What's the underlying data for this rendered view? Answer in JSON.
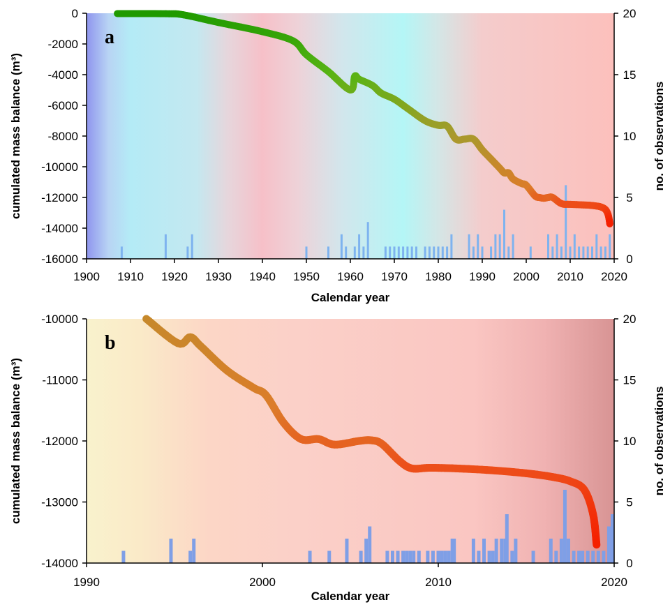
{
  "chart_data": [
    {
      "panel_label": "a",
      "type": "line",
      "xlabel": "Calendar year",
      "ylabel_left": "cumulated mass balance (m³)",
      "ylabel_right": "no. of observations",
      "xlim": [
        1900,
        2020
      ],
      "ylim_left": [
        -16000,
        0
      ],
      "ylim_right": [
        0,
        20
      ],
      "x_ticks": [
        "1900",
        "1910",
        "1920",
        "1930",
        "1940",
        "1950",
        "1960",
        "1970",
        "1980",
        "1990",
        "2000",
        "2010",
        "2020"
      ],
      "y_left_ticks": [
        "0",
        "-2000",
        "-4000",
        "-6000",
        "-8000",
        "-10000",
        "-12000",
        "-14000",
        "-16000"
      ],
      "y_right_ticks": [
        "20",
        "15",
        "10",
        "5",
        "0"
      ],
      "background_climate_bands": [
        {
          "x": 1900,
          "color": "#8f95ee"
        },
        {
          "x": 1905,
          "color": "#b8d4f4"
        },
        {
          "x": 1910,
          "color": "#b4ebf6"
        },
        {
          "x": 1925,
          "color": "#c4e8f0"
        },
        {
          "x": 1932,
          "color": "#e6d6dc"
        },
        {
          "x": 1940,
          "color": "#f6c0c8"
        },
        {
          "x": 1948,
          "color": "#eed2d8"
        },
        {
          "x": 1958,
          "color": "#d2e6ec"
        },
        {
          "x": 1972,
          "color": "#b4f6f6"
        },
        {
          "x": 1980,
          "color": "#d4e6e6"
        },
        {
          "x": 1990,
          "color": "#f4cccc"
        },
        {
          "x": 2020,
          "color": "#fcc0bc"
        }
      ],
      "series": [
        {
          "type": "line",
          "points": [
            [
              1907,
              -20
            ],
            [
              1918,
              -30
            ],
            [
              1922,
              -100
            ],
            [
              1930,
              -600
            ],
            [
              1940,
              -1200
            ],
            [
              1947,
              -1800
            ],
            [
              1950,
              -2700
            ],
            [
              1955,
              -3800
            ],
            [
              1960,
              -5000
            ],
            [
              1961,
              -4100
            ],
            [
              1962,
              -4300
            ],
            [
              1965,
              -4700
            ],
            [
              1967,
              -5200
            ],
            [
              1970,
              -5600
            ],
            [
              1973,
              -6200
            ],
            [
              1977,
              -7000
            ],
            [
              1980,
              -7300
            ],
            [
              1982,
              -7350
            ],
            [
              1984,
              -8200
            ],
            [
              1986,
              -8200
            ],
            [
              1988,
              -8200
            ],
            [
              1990,
              -8900
            ],
            [
              1992,
              -9500
            ],
            [
              1994,
              -10100
            ],
            [
              1995,
              -10400
            ],
            [
              1996,
              -10400
            ],
            [
              1997,
              -10800
            ],
            [
              1999,
              -11100
            ],
            [
              2000,
              -11200
            ],
            [
              2002,
              -11900
            ],
            [
              2003,
              -12000
            ],
            [
              2004,
              -12050
            ],
            [
              2005,
              -12000
            ],
            [
              2006,
              -12000
            ],
            [
              2008,
              -12400
            ],
            [
              2010,
              -12450
            ],
            [
              2014,
              -12500
            ],
            [
              2016,
              -12560
            ],
            [
              2017,
              -12620
            ],
            [
              2018,
              -12780
            ],
            [
              2018.6,
              -13100
            ],
            [
              2018.9,
              -13500
            ],
            [
              2019,
              -13720
            ]
          ]
        },
        {
          "type": "bar",
          "name": "no. of observations",
          "color": "#7eb3ef",
          "x": [
            1908,
            1918,
            1923,
            1924,
            1950,
            1955,
            1958,
            1959,
            1961,
            1962,
            1963,
            1964,
            1968,
            1969,
            1970,
            1971,
            1972,
            1973,
            1974,
            1975,
            1977,
            1978,
            1979,
            1980,
            1981,
            1982,
            1983,
            1987,
            1988,
            1989,
            1990,
            1992,
            1993,
            1994,
            1995,
            1996,
            1997,
            2001,
            2005,
            2006,
            2007,
            2008,
            2009,
            2010,
            2011,
            2012,
            2013,
            2014,
            2015,
            2016,
            2017,
            2018,
            2019
          ],
          "values": [
            1,
            2,
            1,
            2,
            1,
            1,
            2,
            1,
            1,
            2,
            1,
            3,
            1,
            1,
            1,
            1,
            1,
            1,
            1,
            1,
            1,
            1,
            1,
            1,
            1,
            1,
            2,
            2,
            1,
            2,
            1,
            1,
            2,
            2,
            4,
            1,
            2,
            1,
            2,
            1,
            2,
            1,
            6,
            1,
            2,
            1,
            1,
            1,
            1,
            2,
            1,
            1,
            2
          ]
        }
      ]
    },
    {
      "panel_label": "b",
      "type": "line",
      "xlabel": "Calendar year",
      "ylabel_left": "cumulated mass balance (m³)",
      "ylabel_right": "no. of observations",
      "xlim": [
        1990,
        2020
      ],
      "ylim_left": [
        -14000,
        -10000
      ],
      "ylim_right": [
        0,
        20
      ],
      "x_ticks": [
        "1990",
        "2000",
        "2010",
        "2020"
      ],
      "y_left_ticks": [
        "-10000",
        "-11000",
        "-12000",
        "-13000",
        "-14000"
      ],
      "y_right_ticks": [
        "20",
        "15",
        "10",
        "5",
        "0"
      ],
      "background_climate_bands": [
        {
          "x": 1990,
          "color": "#f9f2cd"
        },
        {
          "x": 1993,
          "color": "#faeac8"
        },
        {
          "x": 1997,
          "color": "#fcd6c6"
        },
        {
          "x": 2002,
          "color": "#fbd0c8"
        },
        {
          "x": 2012,
          "color": "#fac6c2"
        },
        {
          "x": 2016,
          "color": "#f0b2b2"
        },
        {
          "x": 2020,
          "color": "#d89494"
        }
      ],
      "series": [
        {
          "type": "line",
          "points": [
            [
              1993.4,
              -10000
            ],
            [
              1995.2,
              -10400
            ],
            [
              1995.9,
              -10300
            ],
            [
              1996.5,
              -10450
            ],
            [
              1998,
              -10850
            ],
            [
              1999.5,
              -11130
            ],
            [
              2000.2,
              -11250
            ],
            [
              2001.2,
              -11700
            ],
            [
              2002.2,
              -11970
            ],
            [
              2003.2,
              -11970
            ],
            [
              2004.1,
              -12060
            ],
            [
              2005.5,
              -12000
            ],
            [
              2006.2,
              -11990
            ],
            [
              2006.8,
              -12050
            ],
            [
              2007.8,
              -12330
            ],
            [
              2008.5,
              -12450
            ],
            [
              2009.5,
              -12440
            ],
            [
              2011,
              -12450
            ],
            [
              2013,
              -12480
            ],
            [
              2015,
              -12530
            ],
            [
              2016.5,
              -12590
            ],
            [
              2017.5,
              -12660
            ],
            [
              2018.3,
              -12800
            ],
            [
              2018.8,
              -13200
            ],
            [
              2019,
              -13700
            ]
          ]
        },
        {
          "type": "bar",
          "name": "no. of observations",
          "color": "#7f9fe6",
          "x": [
            1992.1,
            1994.8,
            1995.9,
            1996.1,
            2002.7,
            2003.8,
            2004.8,
            2005.6,
            2005.9,
            2006.1,
            2007.1,
            2007.4,
            2007.7,
            2008.0,
            2008.2,
            2008.4,
            2008.6,
            2008.9,
            2009.4,
            2009.7,
            2010.0,
            2010.2,
            2010.4,
            2010.6,
            2010.8,
            2010.9,
            2012.0,
            2012.3,
            2012.6,
            2012.9,
            2013.1,
            2013.3,
            2013.6,
            2013.8,
            2013.9,
            2014.2,
            2014.4,
            2015.4,
            2016.4,
            2016.7,
            2017.0,
            2017.2,
            2017.4,
            2017.7,
            2018.0,
            2018.2,
            2018.5,
            2018.8,
            2019.1,
            2019.4,
            2019.7,
            2019.9
          ],
          "values": [
            1,
            2,
            1,
            2,
            1,
            1,
            2,
            1,
            2,
            3,
            1,
            1,
            1,
            1,
            1,
            1,
            1,
            1,
            1,
            1,
            1,
            1,
            1,
            1,
            2,
            2,
            2,
            1,
            2,
            1,
            1,
            2,
            2,
            2,
            4,
            1,
            2,
            1,
            2,
            1,
            2,
            6,
            2,
            1,
            1,
            1,
            1,
            1,
            1,
            1,
            3,
            4
          ]
        }
      ]
    }
  ]
}
